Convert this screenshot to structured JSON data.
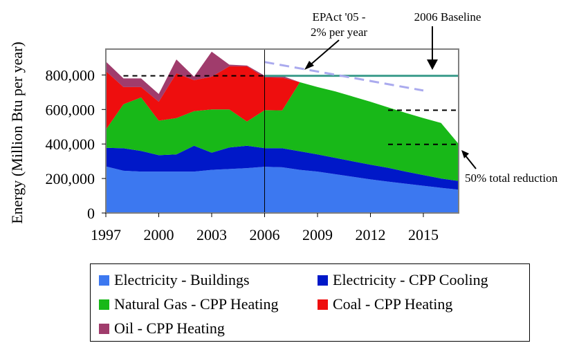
{
  "chart_data": {
    "type": "area",
    "stacked": true,
    "ylabel": "Energy (Million Btu per year)",
    "xlabel": "",
    "xlim": [
      1997,
      2017
    ],
    "ylim": [
      0,
      950000
    ],
    "x_ticks": [
      1997,
      2000,
      2003,
      2006,
      2009,
      2012,
      2015
    ],
    "x_tick_labels": [
      "1997",
      "2000",
      "2003",
      "2006",
      "2009",
      "2012",
      "2015"
    ],
    "y_ticks": [
      0,
      200000,
      400000,
      600000,
      800000
    ],
    "y_tick_labels": [
      "0",
      "200,000",
      "400,000",
      "600,000",
      "800,000"
    ],
    "grid": false,
    "legend_position": "bottom",
    "x": [
      1997,
      1998,
      1999,
      2000,
      2001,
      2002,
      2003,
      2004,
      2005,
      2006,
      2007,
      2008,
      2009,
      2010,
      2011,
      2012,
      2013,
      2014,
      2015,
      2016,
      2017
    ],
    "series": [
      {
        "name": "Electricity - Buildings",
        "color": "#3c78f0",
        "values": [
          270000,
          245000,
          240000,
          240000,
          240000,
          240000,
          250000,
          255000,
          260000,
          268000,
          265000,
          250000,
          240000,
          225000,
          210000,
          195000,
          182000,
          170000,
          158000,
          146000,
          135000
        ]
      },
      {
        "name": "Electricity - CPP Cooling",
        "color": "#0018c8",
        "values": [
          108000,
          130000,
          120000,
          95000,
          100000,
          150000,
          100000,
          125000,
          130000,
          108000,
          110000,
          108000,
          100000,
          95000,
          90000,
          85000,
          80000,
          70000,
          62000,
          54000,
          50000
        ]
      },
      {
        "name": "Natural Gas - CPP Heating",
        "color": "#18b818",
        "values": [
          105000,
          255000,
          310000,
          200000,
          210000,
          200000,
          250000,
          220000,
          140000,
          220000,
          220000,
          400000,
          390000,
          385000,
          375000,
          365000,
          350000,
          340000,
          330000,
          322000,
          215000
        ]
      },
      {
        "name": "Coal - CPP Heating",
        "color": "#ee0e0e",
        "values": [
          340000,
          100000,
          60000,
          110000,
          260000,
          180000,
          190000,
          250000,
          320000,
          190000,
          190000,
          0,
          0,
          0,
          0,
          0,
          0,
          0,
          0,
          0,
          0
        ]
      },
      {
        "name": "Oil - CPP Heating",
        "color": "#a03c6c",
        "values": [
          55000,
          50000,
          50000,
          45000,
          80000,
          20000,
          145000,
          10000,
          5000,
          10000,
          10000,
          0,
          0,
          0,
          0,
          0,
          0,
          0,
          0,
          0,
          0
        ]
      }
    ],
    "reference_lines": {
      "baseline_2006": {
        "label": "2006 Baseline",
        "x": [
          2006,
          2017
        ],
        "y": 795000,
        "color": "#3c9c8c"
      },
      "epact": {
        "label": "EPAct '05 - 2% per year",
        "x": [
          2006,
          2015
        ],
        "y": [
          875000,
          710000
        ],
        "color": "#aaaaee"
      },
      "dashed_levels": [
        {
          "y": 795000,
          "x": [
            1998,
            2006
          ]
        },
        {
          "y": 795000,
          "x": [
            2013,
            2017
          ]
        },
        {
          "y": 596000,
          "x": [
            2013,
            2017
          ]
        },
        {
          "y": 398000,
          "x": [
            2013,
            2017
          ]
        }
      ],
      "divider_year": 2006
    },
    "annotations": {
      "epact_line1": "EPAct '05 -",
      "epact_line2": "2% per year",
      "baseline": "2006 Baseline",
      "reduction": "50% total reduction"
    }
  }
}
